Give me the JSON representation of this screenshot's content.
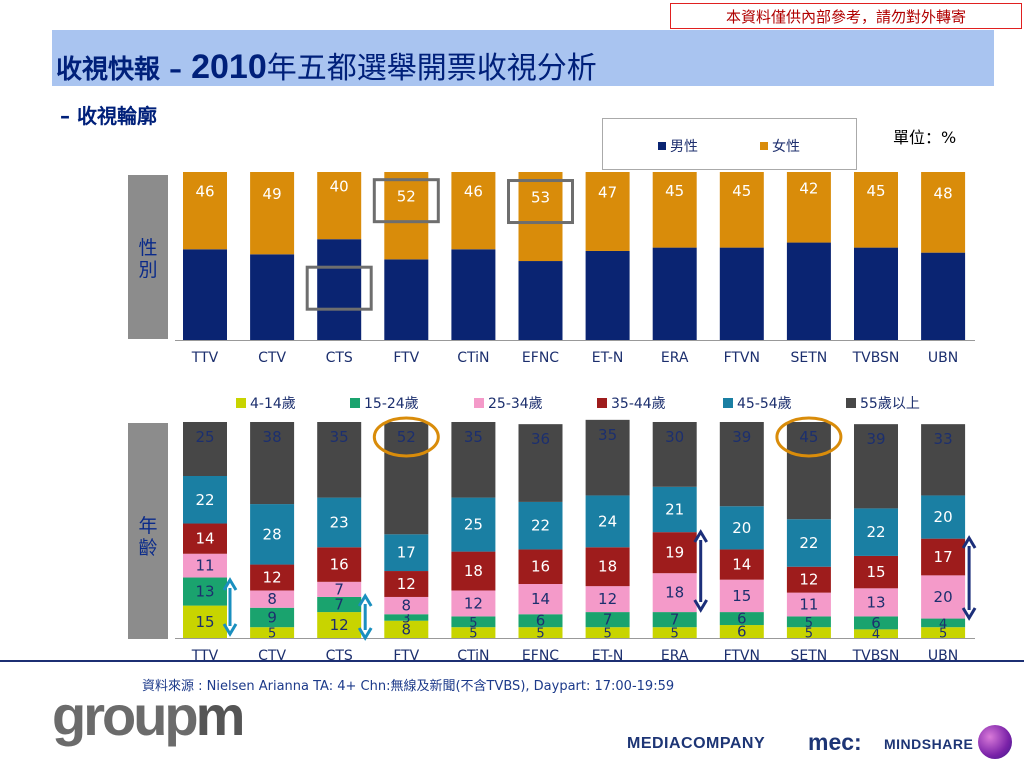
{
  "notice": "本資料僅供內部參考，請勿對外轉寄",
  "title": {
    "part1": "收視快報 – ",
    "part2": "2010",
    "part3": "年五都選舉開票收視分析"
  },
  "subtitle": "– 收視輪廓",
  "unit": "單位：%",
  "side_labels": {
    "gender": "性別",
    "age": "年齡"
  },
  "source": "資料來源 : Nielsen Arianna TA: 4+ Chn:無線及新聞(不含TVBS), Daypart: 17:00-19:59",
  "logos": {
    "groupm": "groupm",
    "mediacompany": "MEDIACOMPANY",
    "mec": "mec:",
    "mindshare": "MINDSHARE"
  },
  "colors": {
    "male": "#0a2472",
    "female": "#d98c0a",
    "age": [
      "#c8d400",
      "#1aa36e",
      "#f49ac9",
      "#9e1c1c",
      "#1a7fa3",
      "#474747"
    ],
    "highlight_box": "#6e6e6e",
    "highlight_circle": "#d98c0a",
    "arrow_navy": "#1c2f7a",
    "arrow_teal": "#1a8fbf"
  },
  "chart_data": [
    {
      "type": "bar",
      "stacked": true,
      "title": "性別",
      "categories": [
        "TTV",
        "CTV",
        "CTS",
        "FTV",
        "CTiN",
        "EFNC",
        "ET-N",
        "ERA",
        "FTVN",
        "SETN",
        "TVBSN",
        "UBN"
      ],
      "series": [
        {
          "name": "男性",
          "values": [
            54,
            51,
            60,
            48,
            54,
            47,
            53,
            55,
            55,
            58,
            55,
            52
          ],
          "labeled": false
        },
        {
          "name": "女性",
          "values": [
            46,
            49,
            40,
            52,
            46,
            53,
            47,
            45,
            45,
            42,
            45,
            48
          ],
          "labeled": true
        }
      ],
      "ylim": [
        0,
        100
      ],
      "highlights": [
        {
          "category": "FTV",
          "series": "女性",
          "shape": "box"
        },
        {
          "category": "EFNC",
          "series": "女性",
          "shape": "box"
        },
        {
          "category": "CTS",
          "series": "男性",
          "shape": "box"
        }
      ]
    },
    {
      "type": "bar",
      "stacked": true,
      "title": "年齡",
      "categories": [
        "TTV",
        "CTV",
        "CTS",
        "FTV",
        "CTiN",
        "EFNC",
        "ET-N",
        "ERA",
        "FTVN",
        "SETN",
        "TVBSN",
        "UBN"
      ],
      "series": [
        {
          "name": "4-14歲",
          "values": [
            15,
            5,
            12,
            8,
            5,
            5,
            5,
            5,
            6,
            5,
            4,
            5
          ]
        },
        {
          "name": "15-24歲",
          "values": [
            13,
            9,
            7,
            3,
            5,
            6,
            7,
            7,
            6,
            5,
            6,
            4
          ]
        },
        {
          "name": "25-34歲",
          "values": [
            11,
            8,
            7,
            8,
            12,
            14,
            12,
            18,
            15,
            11,
            13,
            20
          ]
        },
        {
          "name": "35-44歲",
          "values": [
            14,
            12,
            16,
            12,
            18,
            16,
            18,
            19,
            14,
            12,
            15,
            17
          ]
        },
        {
          "name": "45-54歲",
          "values": [
            22,
            28,
            23,
            17,
            25,
            22,
            24,
            21,
            20,
            22,
            22,
            20
          ]
        },
        {
          "name": "55歲以上",
          "values": [
            25,
            38,
            35,
            52,
            35,
            36,
            35,
            30,
            39,
            45,
            39,
            33
          ]
        }
      ],
      "ylim": [
        0,
        100
      ],
      "highlights": [
        {
          "category": "FTV",
          "series": "55歲以上",
          "shape": "circle"
        },
        {
          "category": "SETN",
          "series": "55歲以上",
          "shape": "circle"
        }
      ],
      "arrows": [
        {
          "category": "TTV",
          "color": "teal"
        },
        {
          "category": "CTS",
          "color": "teal"
        },
        {
          "category": "ERA",
          "color": "navy"
        },
        {
          "category": "UBN",
          "color": "navy"
        }
      ]
    }
  ]
}
